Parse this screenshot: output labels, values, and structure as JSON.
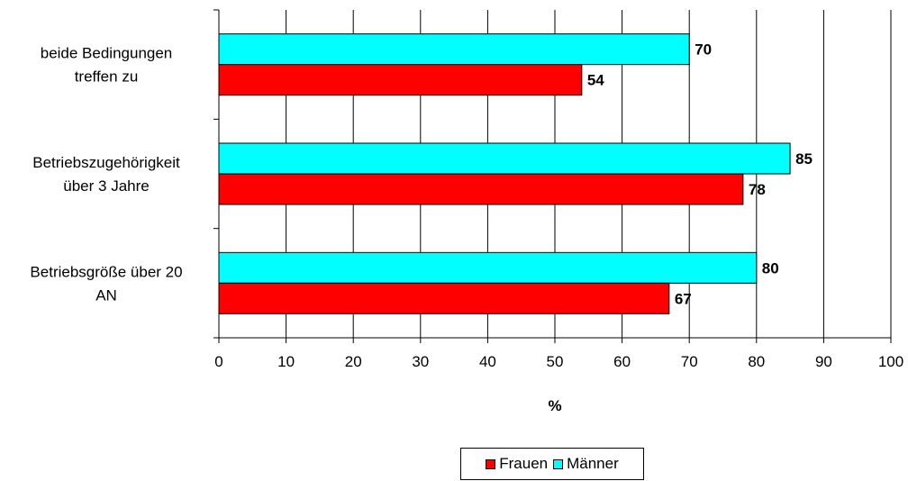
{
  "chart_data": {
    "type": "bar",
    "orientation": "horizontal",
    "categories": [
      [
        "beide Bedingungen",
        "treffen zu"
      ],
      [
        "Betriebszugehörigkeit",
        "über 3 Jahre"
      ],
      [
        "Betriebsgröße über 20",
        "AN"
      ]
    ],
    "series": [
      {
        "name": "Männer",
        "color": "#00FFFF",
        "values": [
          70,
          85,
          80
        ]
      },
      {
        "name": "Frauen",
        "color": "#FF0000",
        "values": [
          54,
          78,
          67
        ]
      }
    ],
    "xlabel": "%",
    "xlim": [
      0,
      100
    ],
    "xticks": [
      0,
      10,
      20,
      30,
      40,
      50,
      60,
      70,
      80,
      90,
      100
    ],
    "grid": true,
    "data_labels": true,
    "legend": {
      "position": "bottom",
      "entries": [
        {
          "label": "Frauen",
          "color": "#FF0000"
        },
        {
          "label": "Männer",
          "color": "#00FFFF"
        }
      ]
    }
  }
}
